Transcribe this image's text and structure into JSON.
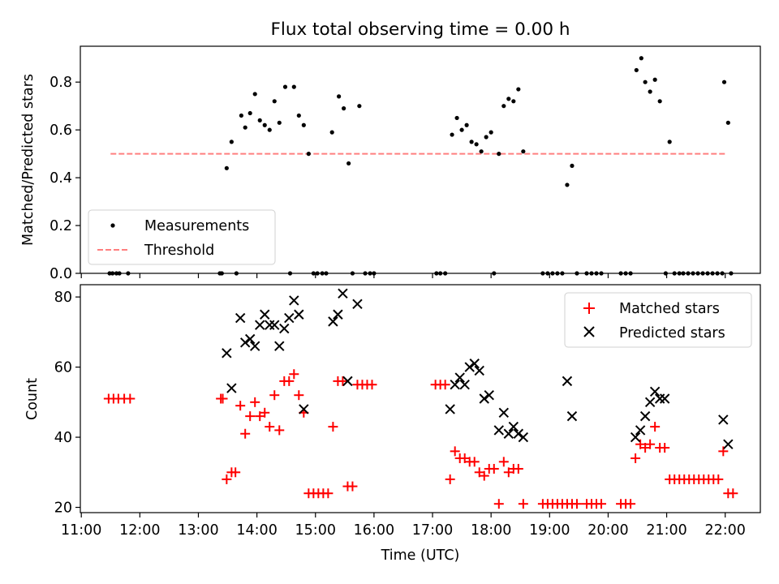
{
  "figure": {
    "title": "Flux total observing time = 0.00 h",
    "xlabel": "Time (UTC)"
  },
  "colors": {
    "measurement": "#000000",
    "threshold": "#ff7f7f",
    "matched": "#ff0000",
    "predicted": "#000000"
  },
  "chart_data": [
    {
      "type": "scatter",
      "panel": "top",
      "title": "Flux total observing time = 0.00 h",
      "xlabel": "",
      "ylabel": "Matched/Predicted stars",
      "xlim": [
        "10:59",
        "22:36"
      ],
      "ylim": [
        0,
        0.95
      ],
      "xticks": [
        "11:00",
        "12:00",
        "13:00",
        "14:00",
        "15:00",
        "16:00",
        "17:00",
        "18:00",
        "19:00",
        "20:00",
        "21:00",
        "22:00"
      ],
      "yticks": [
        "0.0",
        "0.2",
        "0.4",
        "0.6",
        "0.8"
      ],
      "legend_position": "lower-left",
      "grid": false,
      "series": [
        {
          "name": "Measurements",
          "points": [
            [
              "11:29",
              0
            ],
            [
              "11:32",
              0
            ],
            [
              "11:36",
              0
            ],
            [
              "11:39",
              0
            ],
            [
              "11:48",
              0
            ],
            [
              "13:22",
              0
            ],
            [
              "13:24",
              0
            ],
            [
              "13:29",
              0.44
            ],
            [
              "13:34",
              0.55
            ],
            [
              "13:39",
              0
            ],
            [
              "13:44",
              0.66
            ],
            [
              "13:48",
              0.61
            ],
            [
              "13:53",
              0.67
            ],
            [
              "13:58",
              0.75
            ],
            [
              "14:03",
              0.64
            ],
            [
              "14:08",
              0.62
            ],
            [
              "14:13",
              0.6
            ],
            [
              "14:18",
              0.72
            ],
            [
              "14:23",
              0.63
            ],
            [
              "14:29",
              0.78
            ],
            [
              "14:34",
              0
            ],
            [
              "14:38",
              0.78
            ],
            [
              "14:43",
              0.66
            ],
            [
              "14:48",
              0.62
            ],
            [
              "14:53",
              0.5
            ],
            [
              "14:58",
              0
            ],
            [
              "15:02",
              0
            ],
            [
              "15:07",
              0
            ],
            [
              "15:11",
              0
            ],
            [
              "15:17",
              0.59
            ],
            [
              "15:24",
              0.74
            ],
            [
              "15:29",
              0.69
            ],
            [
              "15:34",
              0.46
            ],
            [
              "15:38",
              0
            ],
            [
              "15:45",
              0.7
            ],
            [
              "15:51",
              0
            ],
            [
              "15:56",
              0
            ],
            [
              "16:00",
              0
            ],
            [
              "17:04",
              0
            ],
            [
              "17:08",
              0
            ],
            [
              "17:13",
              0
            ],
            [
              "17:20",
              0.58
            ],
            [
              "17:25",
              0.65
            ],
            [
              "17:30",
              0.6
            ],
            [
              "17:35",
              0.62
            ],
            [
              "17:40",
              0.55
            ],
            [
              "17:45",
              0.54
            ],
            [
              "17:50",
              0.51
            ],
            [
              "17:55",
              0.57
            ],
            [
              "18:00",
              0.59
            ],
            [
              "18:03",
              0
            ],
            [
              "18:08",
              0.5
            ],
            [
              "18:13",
              0.7
            ],
            [
              "18:18",
              0.73
            ],
            [
              "18:23",
              0.72
            ],
            [
              "18:28",
              0.77
            ],
            [
              "18:33",
              0.51
            ],
            [
              "18:53",
              0
            ],
            [
              "18:58",
              0
            ],
            [
              "19:03",
              0
            ],
            [
              "19:08",
              0
            ],
            [
              "19:13",
              0
            ],
            [
              "19:18",
              0.37
            ],
            [
              "19:23",
              0.45
            ],
            [
              "19:28",
              0
            ],
            [
              "19:38",
              0
            ],
            [
              "19:43",
              0
            ],
            [
              "19:48",
              0
            ],
            [
              "19:53",
              0
            ],
            [
              "20:13",
              0
            ],
            [
              "20:18",
              0
            ],
            [
              "20:23",
              0
            ],
            [
              "20:29",
              0.85
            ],
            [
              "20:34",
              0.9
            ],
            [
              "20:38",
              0.8
            ],
            [
              "20:43",
              0.76
            ],
            [
              "20:48",
              0.81
            ],
            [
              "20:53",
              0.72
            ],
            [
              "20:59",
              0
            ],
            [
              "21:03",
              0.55
            ],
            [
              "21:08",
              0
            ],
            [
              "21:13",
              0
            ],
            [
              "21:17",
              0
            ],
            [
              "21:22",
              0
            ],
            [
              "21:27",
              0
            ],
            [
              "21:32",
              0
            ],
            [
              "21:37",
              0
            ],
            [
              "21:42",
              0
            ],
            [
              "21:47",
              0
            ],
            [
              "21:52",
              0
            ],
            [
              "21:57",
              0
            ],
            [
              "21:59",
              0.8
            ],
            [
              "22:03",
              0.63
            ],
            [
              "22:06",
              0
            ]
          ]
        },
        {
          "name": "Threshold",
          "style": "dashed",
          "points": [
            [
              "11:30",
              0.5
            ],
            [
              "22:00",
              0.5
            ]
          ]
        }
      ]
    },
    {
      "type": "scatter",
      "panel": "bottom",
      "xlabel": "Time (UTC)",
      "ylabel": "Count",
      "xlim": [
        "10:59",
        "22:36"
      ],
      "ylim": [
        18.5,
        83.5
      ],
      "xticks": [
        "11:00",
        "12:00",
        "13:00",
        "14:00",
        "15:00",
        "16:00",
        "17:00",
        "18:00",
        "19:00",
        "20:00",
        "21:00",
        "22:00"
      ],
      "yticks": [
        "20",
        "40",
        "60",
        "80"
      ],
      "legend_position": "upper-right",
      "grid": false,
      "series": [
        {
          "name": "Matched stars",
          "marker": "+",
          "points": [
            [
              "11:28",
              51
            ],
            [
              "11:33",
              51
            ],
            [
              "11:38",
              51
            ],
            [
              "11:44",
              51
            ],
            [
              "11:50",
              51
            ],
            [
              "13:23",
              51
            ],
            [
              "13:25",
              51
            ],
            [
              "13:29",
              28
            ],
            [
              "13:34",
              30
            ],
            [
              "13:38",
              30
            ],
            [
              "13:43",
              49
            ],
            [
              "13:48",
              41
            ],
            [
              "13:53",
              46
            ],
            [
              "13:58",
              50
            ],
            [
              "14:03",
              46
            ],
            [
              "14:08",
              47
            ],
            [
              "14:13",
              43
            ],
            [
              "14:18",
              52
            ],
            [
              "14:23",
              42
            ],
            [
              "14:28",
              56
            ],
            [
              "14:33",
              56
            ],
            [
              "14:38",
              58
            ],
            [
              "14:43",
              52
            ],
            [
              "14:48",
              47
            ],
            [
              "14:53",
              24
            ],
            [
              "14:58",
              24
            ],
            [
              "15:03",
              24
            ],
            [
              "15:08",
              24
            ],
            [
              "15:13",
              24
            ],
            [
              "15:18",
              43
            ],
            [
              "15:23",
              56
            ],
            [
              "15:28",
              56
            ],
            [
              "15:33",
              26
            ],
            [
              "15:38",
              26
            ],
            [
              "15:43",
              55
            ],
            [
              "15:48",
              55
            ],
            [
              "15:53",
              55
            ],
            [
              "15:58",
              55
            ],
            [
              "17:03",
              55
            ],
            [
              "17:08",
              55
            ],
            [
              "17:13",
              55
            ],
            [
              "17:18",
              28
            ],
            [
              "17:23",
              36
            ],
            [
              "17:28",
              34
            ],
            [
              "17:33",
              34
            ],
            [
              "17:38",
              33
            ],
            [
              "17:43",
              33
            ],
            [
              "17:48",
              30
            ],
            [
              "17:53",
              29
            ],
            [
              "17:58",
              31
            ],
            [
              "18:03",
              31
            ],
            [
              "18:08",
              21
            ],
            [
              "18:13",
              33
            ],
            [
              "18:18",
              30
            ],
            [
              "18:23",
              31
            ],
            [
              "18:28",
              31
            ],
            [
              "18:33",
              21
            ],
            [
              "18:53",
              21
            ],
            [
              "18:58",
              21
            ],
            [
              "19:03",
              21
            ],
            [
              "19:08",
              21
            ],
            [
              "19:13",
              21
            ],
            [
              "19:18",
              21
            ],
            [
              "19:23",
              21
            ],
            [
              "19:28",
              21
            ],
            [
              "19:38",
              21
            ],
            [
              "19:43",
              21
            ],
            [
              "19:48",
              21
            ],
            [
              "19:53",
              21
            ],
            [
              "20:13",
              21
            ],
            [
              "20:18",
              21
            ],
            [
              "20:23",
              21
            ],
            [
              "20:28",
              34
            ],
            [
              "20:33",
              38
            ],
            [
              "20:38",
              37
            ],
            [
              "20:43",
              38
            ],
            [
              "20:48",
              43
            ],
            [
              "20:53",
              37
            ],
            [
              "20:58",
              37
            ],
            [
              "21:03",
              28
            ],
            [
              "21:08",
              28
            ],
            [
              "21:13",
              28
            ],
            [
              "21:18",
              28
            ],
            [
              "21:23",
              28
            ],
            [
              "21:28",
              28
            ],
            [
              "21:33",
              28
            ],
            [
              "21:38",
              28
            ],
            [
              "21:43",
              28
            ],
            [
              "21:48",
              28
            ],
            [
              "21:53",
              28
            ],
            [
              "21:58",
              36
            ],
            [
              "22:03",
              24
            ],
            [
              "22:08",
              24
            ]
          ]
        },
        {
          "name": "Predicted stars",
          "marker": "x",
          "points": [
            [
              "13:29",
              64
            ],
            [
              "13:34",
              54
            ],
            [
              "13:43",
              74
            ],
            [
              "13:48",
              67
            ],
            [
              "13:53",
              68
            ],
            [
              "13:58",
              66
            ],
            [
              "14:03",
              72
            ],
            [
              "14:08",
              75
            ],
            [
              "14:13",
              72
            ],
            [
              "14:18",
              72
            ],
            [
              "14:23",
              66
            ],
            [
              "14:28",
              71
            ],
            [
              "14:33",
              74
            ],
            [
              "14:38",
              79
            ],
            [
              "14:43",
              75
            ],
            [
              "14:48",
              48
            ],
            [
              "15:18",
              73
            ],
            [
              "15:23",
              75
            ],
            [
              "15:28",
              81
            ],
            [
              "15:33",
              56
            ],
            [
              "15:43",
              78
            ],
            [
              "17:18",
              48
            ],
            [
              "17:23",
              55
            ],
            [
              "17:28",
              57
            ],
            [
              "17:33",
              55
            ],
            [
              "17:38",
              60
            ],
            [
              "17:43",
              61
            ],
            [
              "17:48",
              59
            ],
            [
              "17:53",
              51
            ],
            [
              "17:58",
              52
            ],
            [
              "18:08",
              42
            ],
            [
              "18:13",
              47
            ],
            [
              "18:18",
              41
            ],
            [
              "18:23",
              43
            ],
            [
              "18:28",
              41
            ],
            [
              "18:33",
              40
            ],
            [
              "19:18",
              56
            ],
            [
              "19:23",
              46
            ],
            [
              "20:28",
              40
            ],
            [
              "20:33",
              42
            ],
            [
              "20:38",
              46
            ],
            [
              "20:43",
              50
            ],
            [
              "20:48",
              53
            ],
            [
              "20:53",
              51
            ],
            [
              "20:58",
              51
            ],
            [
              "21:58",
              45
            ],
            [
              "22:03",
              38
            ]
          ]
        }
      ]
    }
  ]
}
